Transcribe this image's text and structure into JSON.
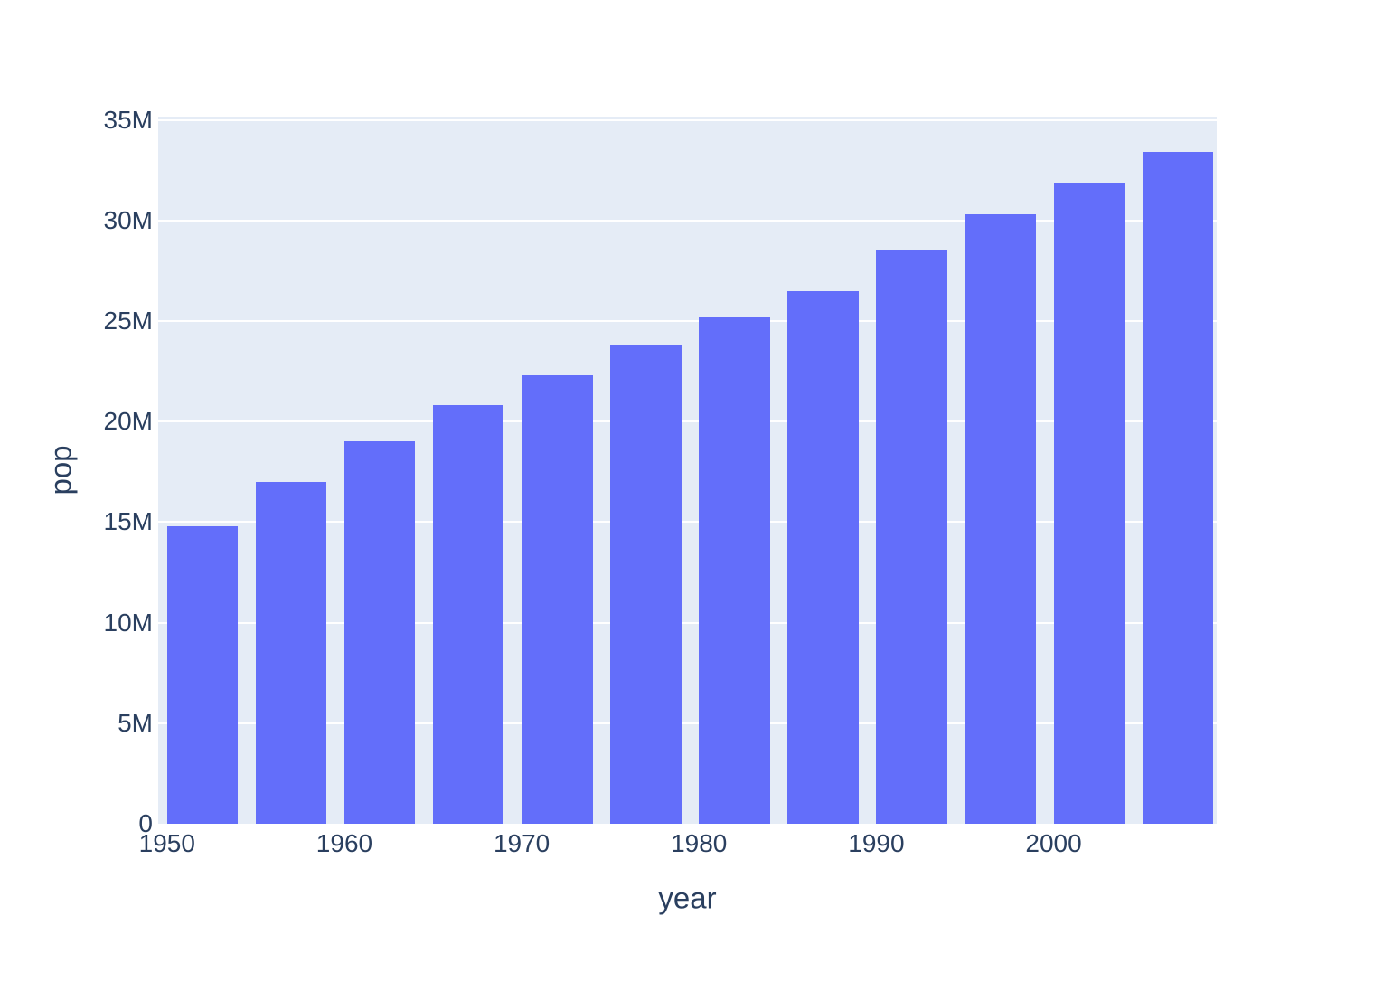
{
  "chart_data": {
    "type": "bar",
    "title": "",
    "xlabel": "year",
    "ylabel": "pop",
    "values_unit": "millions",
    "x": [
      1952,
      1957,
      1962,
      1967,
      1972,
      1977,
      1982,
      1987,
      1992,
      1997,
      2002,
      2007
    ],
    "values": [
      14.8,
      17.0,
      19.0,
      20.8,
      22.3,
      23.8,
      25.2,
      26.5,
      28.5,
      30.3,
      31.9,
      33.4
    ],
    "bar_width_in_x_units": 4,
    "xlim": [
      1949.5,
      2009.2
    ],
    "ylim": [
      0,
      35.16
    ],
    "x_tick_values": [
      1950,
      1960,
      1970,
      1980,
      1990,
      2000
    ],
    "x_tick_labels": [
      "1950",
      "1960",
      "1970",
      "1980",
      "1990",
      "2000"
    ],
    "y_tick_values": [
      0,
      5,
      10,
      15,
      20,
      25,
      30,
      35
    ],
    "y_tick_labels": [
      "0",
      "5M",
      "10M",
      "15M",
      "20M",
      "25M",
      "30M",
      "35M"
    ],
    "legend": "none",
    "grid": "horizontal-on",
    "colors": {
      "bar": "#636EFA",
      "plot_background": "#E5ECF6",
      "paper_background": "#FFFFFF",
      "gridline": "#FFFFFF",
      "text": "#2A3F5F"
    }
  }
}
